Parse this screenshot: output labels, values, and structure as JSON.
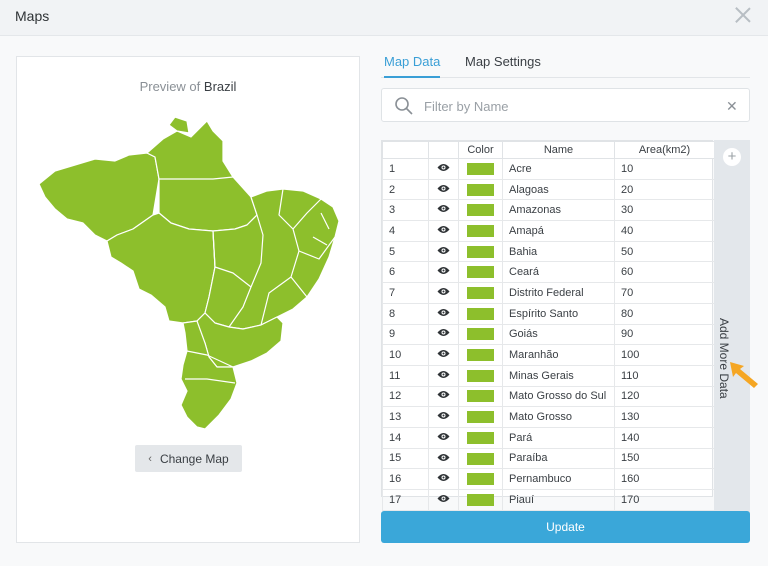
{
  "window": {
    "title": "Maps"
  },
  "preview": {
    "prefix": "Preview of",
    "country": "Brazil",
    "change_map_label": "Change Map"
  },
  "tabs": [
    {
      "label": "Map Data",
      "active": true
    },
    {
      "label": "Map Settings",
      "active": false
    }
  ],
  "search": {
    "placeholder": "Filter by Name",
    "value": ""
  },
  "table": {
    "columns": [
      "",
      "",
      "Color",
      "Name",
      "Area(km2)"
    ],
    "fill_color": "#8dbf2c",
    "rows": [
      {
        "n": "1",
        "name": "Acre",
        "area": "10"
      },
      {
        "n": "2",
        "name": "Alagoas",
        "area": "20"
      },
      {
        "n": "3",
        "name": "Amazonas",
        "area": "30"
      },
      {
        "n": "4",
        "name": "Amapá",
        "area": "40"
      },
      {
        "n": "5",
        "name": "Bahia",
        "area": "50"
      },
      {
        "n": "6",
        "name": "Ceará",
        "area": "60"
      },
      {
        "n": "7",
        "name": "Distrito Federal",
        "area": "70"
      },
      {
        "n": "8",
        "name": "Espírito Santo",
        "area": "80"
      },
      {
        "n": "9",
        "name": "Goiás",
        "area": "90"
      },
      {
        "n": "10",
        "name": "Maranhão",
        "area": "100"
      },
      {
        "n": "11",
        "name": "Minas Gerais",
        "area": "110"
      },
      {
        "n": "12",
        "name": "Mato Grosso do Sul",
        "area": "120"
      },
      {
        "n": "13",
        "name": "Mato Grosso",
        "area": "130"
      },
      {
        "n": "14",
        "name": "Pará",
        "area": "140"
      },
      {
        "n": "15",
        "name": "Paraíba",
        "area": "150"
      },
      {
        "n": "16",
        "name": "Pernambuco",
        "area": "160"
      },
      {
        "n": "17",
        "name": "Piauí",
        "area": "170"
      }
    ]
  },
  "add_more": {
    "label": "Add More Data",
    "plus": "+"
  },
  "update_label": "Update",
  "colors": {
    "accent": "#3aa7d9",
    "map_fill": "#8dbf2c",
    "arrow": "#f5a623"
  }
}
